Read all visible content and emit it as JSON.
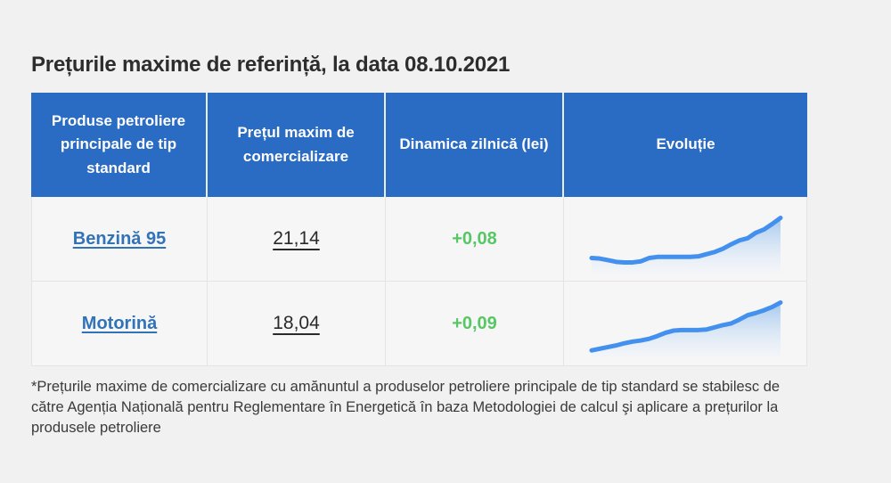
{
  "title": "Prețurile maxime de referință, la data 08.10.2021",
  "colors": {
    "page_bg": "#f1f1f2",
    "header_bg": "#2a6bc3",
    "header_text": "#ffffff",
    "cell_bg": "#f6f6f7",
    "link_blue": "#3272b8",
    "positive_green": "#57c664",
    "spark_line": "#4490ee",
    "spark_fill_top": "rgba(150,191,236,0.85)",
    "spark_fill_bottom": "rgba(238,244,251,0.30)"
  },
  "table": {
    "headers": [
      "Produse petroliere principale de tip standard",
      "Prețul maxim de comercializare",
      "Dinamica zilnică (lei)",
      "Evoluție"
    ],
    "rows": [
      {
        "product": "Benzină 95",
        "price": "21,14",
        "change": "+0,08",
        "trend": "rising"
      },
      {
        "product": "Motorină",
        "price": "18,04",
        "change": "+0,09",
        "trend": "rising"
      }
    ]
  },
  "footnote": "*Prețurile maxime de comercializare cu amănuntul a produselor petroliere principale de tip standard se stabilesc de către Agenția Națională pentru Reglementare în Energetică în baza Metodologiei de calcul şi aplicare a prețurilor la produsele petroliere",
  "chart_data": [
    {
      "type": "line",
      "title": "Evoluție — Benzină 95",
      "legend": "none",
      "axes_visible": false,
      "grid": false,
      "style": "sparkline area chart, unlabeled axes",
      "y_range_relative": [
        0,
        1
      ],
      "values_relative": [
        0.2,
        0.19,
        0.16,
        0.13,
        0.12,
        0.12,
        0.14,
        0.2,
        0.22,
        0.22,
        0.22,
        0.22,
        0.22,
        0.23,
        0.27,
        0.31,
        0.37,
        0.45,
        0.52,
        0.56,
        0.66,
        0.72,
        0.82,
        0.93
      ],
      "last_value_lei": "21,14"
    },
    {
      "type": "line",
      "title": "Evoluție — Motorină",
      "legend": "none",
      "axes_visible": false,
      "grid": false,
      "style": "sparkline area chart, unlabeled axes",
      "y_range_relative": [
        0,
        1
      ],
      "values_relative": [
        0.06,
        0.09,
        0.12,
        0.15,
        0.19,
        0.22,
        0.24,
        0.27,
        0.32,
        0.38,
        0.42,
        0.43,
        0.43,
        0.43,
        0.44,
        0.48,
        0.52,
        0.55,
        0.62,
        0.7,
        0.74,
        0.79,
        0.85,
        0.93
      ],
      "last_value_lei": "18,04"
    }
  ]
}
